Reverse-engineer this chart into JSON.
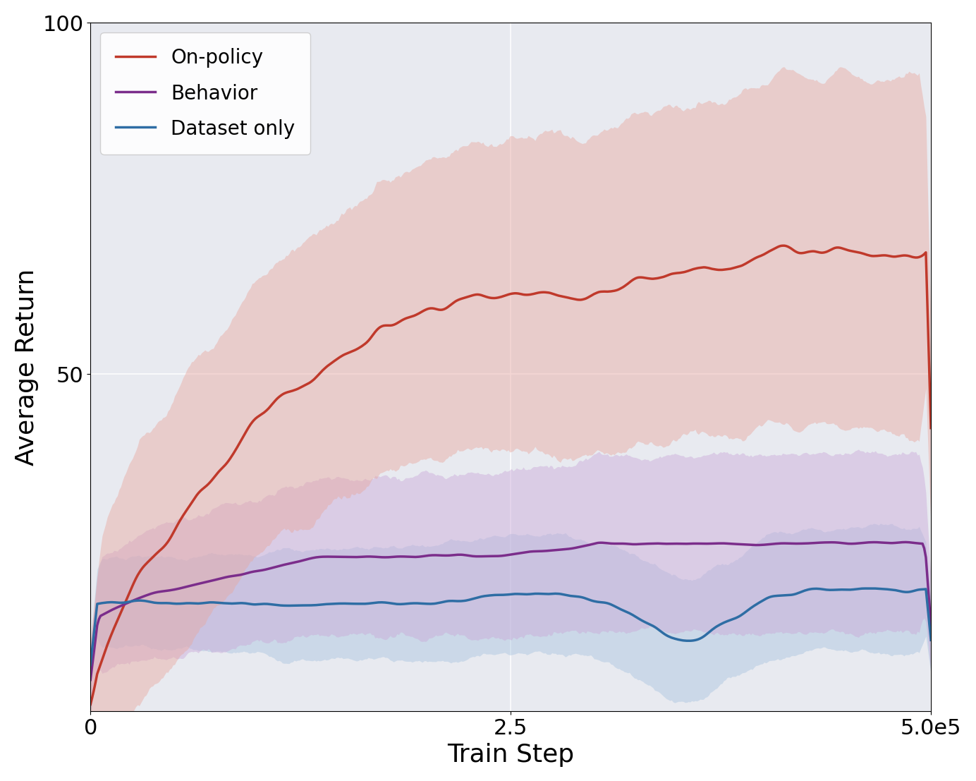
{
  "title": "",
  "xlabel": "Train Step",
  "ylabel": "Average Return",
  "xlim": [
    0,
    500000
  ],
  "ylim": [
    2,
    100
  ],
  "yticks": [
    50,
    100
  ],
  "xticks": [
    0,
    250000,
    500000
  ],
  "xticklabels": [
    "0",
    "2.5",
    "5.0e5"
  ],
  "background_color": "#e8eaf0",
  "series": {
    "on_policy": {
      "label": "On-policy",
      "color": "#c0392b",
      "fill_color": "#e8a8a0",
      "linewidth": 2.5
    },
    "behavior": {
      "label": "Behavior",
      "color": "#7b2d8b",
      "fill_color": "#c9a8d8",
      "linewidth": 2.5
    },
    "dataset_only": {
      "label": "Dataset only",
      "color": "#2e6da4",
      "fill_color": "#a8c4e0",
      "linewidth": 2.5
    }
  },
  "legend": {
    "loc": "upper left",
    "fontsize": 20,
    "framealpha": 0.9
  },
  "label_fontsize": 26,
  "tick_fontsize": 22,
  "n_points": 500
}
